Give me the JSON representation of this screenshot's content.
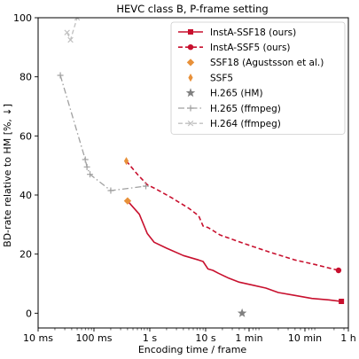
{
  "chart_data": {
    "type": "line",
    "title": "HEVC class B, P-frame setting",
    "xlabel": "Encoding time / frame",
    "ylabel": "BD-rate relative to HM [%, ↓]",
    "x_scale": "log",
    "xlim": [
      "10 ms",
      "1 h"
    ],
    "ylim": [
      -5,
      100
    ],
    "x_ticks": [
      {
        "seconds": 0.01,
        "label": "10 ms"
      },
      {
        "seconds": 0.1,
        "label": "100 ms"
      },
      {
        "seconds": 1,
        "label": "1 s"
      },
      {
        "seconds": 10,
        "label": "10 s"
      },
      {
        "seconds": 60,
        "label": "1 min"
      },
      {
        "seconds": 600,
        "label": "10 min"
      },
      {
        "seconds": 3600,
        "label": "1 h"
      }
    ],
    "y_ticks": [
      0,
      20,
      40,
      60,
      80,
      100
    ],
    "legend_position": "top-right",
    "series": [
      {
        "name": "InstA-SSF18 (ours)",
        "color": "#c8102e",
        "line": "solid",
        "x_seconds": [
          0.4,
          0.65,
          0.9,
          1.2,
          2,
          4,
          7.5,
          9,
          11,
          13.5,
          17,
          25,
          40,
          70,
          120,
          200,
          400,
          800,
          1600,
          2700
        ],
        "y": [
          38,
          33.5,
          27,
          24,
          22,
          19.5,
          18,
          17.5,
          15,
          14.5,
          13.5,
          12,
          10.5,
          9.5,
          8.5,
          7,
          6,
          5,
          4.5,
          4
        ],
        "end_marker": "square"
      },
      {
        "name": "InstA-SSF5 (ours)",
        "color": "#c8102e",
        "line": "dashed",
        "x_seconds": [
          0.38,
          0.6,
          0.9,
          1.3,
          2.5,
          5,
          7.5,
          9,
          11,
          13.5,
          18,
          30,
          60,
          150,
          400,
          900,
          2400
        ],
        "y": [
          51.5,
          47,
          43.5,
          42,
          39,
          35.5,
          33,
          29.5,
          29,
          28,
          26.5,
          25,
          23,
          20.5,
          18,
          16.5,
          14.5
        ],
        "end_marker": "circle"
      },
      {
        "name": "SSF18 (Agustsson et al.)",
        "color": "#e8913a",
        "marker": "diamond",
        "x_seconds": [
          0.4
        ],
        "y": [
          38
        ]
      },
      {
        "name": "SSF5",
        "color": "#e8913a",
        "marker": "thin_diamond",
        "x_seconds": [
          0.38
        ],
        "y": [
          51.5
        ]
      },
      {
        "name": "H.265 (HM)",
        "color": "#808080",
        "marker": "star",
        "x_seconds": [
          45
        ],
        "y": [
          0
        ]
      },
      {
        "name": "H.265 (ffmpeg)",
        "color": "#a0a0a0",
        "line": "dashdot",
        "marker": "plus",
        "x_seconds": [
          0.025,
          0.07,
          0.075,
          0.085,
          0.2,
          0.85
        ],
        "y": [
          80.5,
          52,
          49.5,
          47,
          41.5,
          43
        ]
      },
      {
        "name": "H.264 (ffmpeg)",
        "color": "#c0c0c0",
        "line": "dashed",
        "marker": "x",
        "x_seconds": [
          0.033,
          0.038,
          0.05
        ],
        "y": [
          95,
          92.5,
          100
        ]
      }
    ]
  }
}
